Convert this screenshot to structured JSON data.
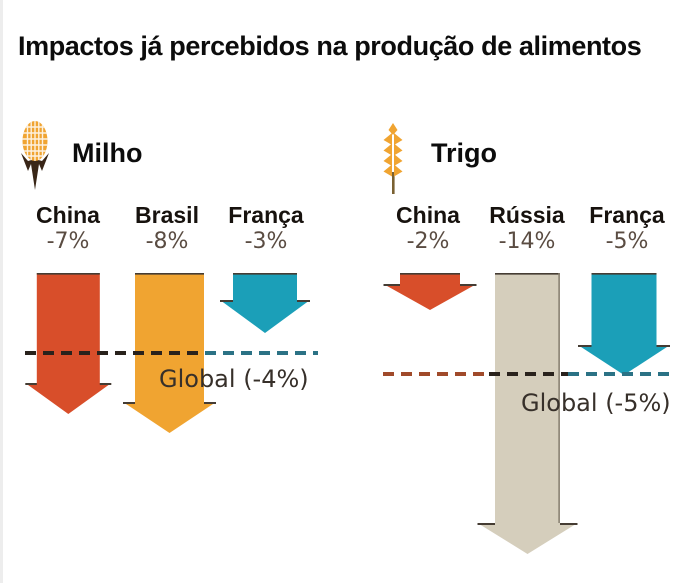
{
  "title": "Impactos já percebidos na produção de alimentos",
  "colors": {
    "red": "#d84e2a",
    "orange": "#f0a431",
    "teal": "#1b9fb8",
    "beige": "#d5cebc",
    "dash_dark": "#29221c",
    "dash_red": "#a04a2a",
    "dash_teal": "#2b7285",
    "arrow_edge": "#453c33",
    "value_text": "#5a4c42",
    "global_text": "#37302a"
  },
  "icons": [
    {
      "name": "corn-icon"
    },
    {
      "name": "wheat-icon"
    }
  ],
  "chart_data": {
    "type": "bar",
    "title": "Impactos já percebidos na produção de alimentos",
    "unit": "%",
    "description": "Downward arrows show observed percent decline in food production by crop and country; dashed line marks global average decline.",
    "groups": [
      {
        "crop": "Milho",
        "icon": "corn-icon",
        "items": [
          {
            "country": "China",
            "label": "-7%",
            "value": -7,
            "color": "#d84e2a"
          },
          {
            "country": "Brasil",
            "label": "-8%",
            "value": -8,
            "color": "#f0a431"
          },
          {
            "country": "França",
            "label": "-3%",
            "value": -3,
            "color": "#1b9fb8"
          }
        ],
        "global": {
          "label": "Global (-4%)",
          "value": -4
        }
      },
      {
        "crop": "Trigo",
        "icon": "wheat-icon",
        "items": [
          {
            "country": "China",
            "label": "-2%",
            "value": -2,
            "color": "#d84e2a"
          },
          {
            "country": "Rússia",
            "label": "-14%",
            "value": -14,
            "color": "#d5cebc"
          },
          {
            "country": "França",
            "label": "-5%",
            "value": -5,
            "color": "#1b9fb8"
          }
        ],
        "global": {
          "label": "Global (-5%)",
          "value": -5
        }
      }
    ]
  }
}
